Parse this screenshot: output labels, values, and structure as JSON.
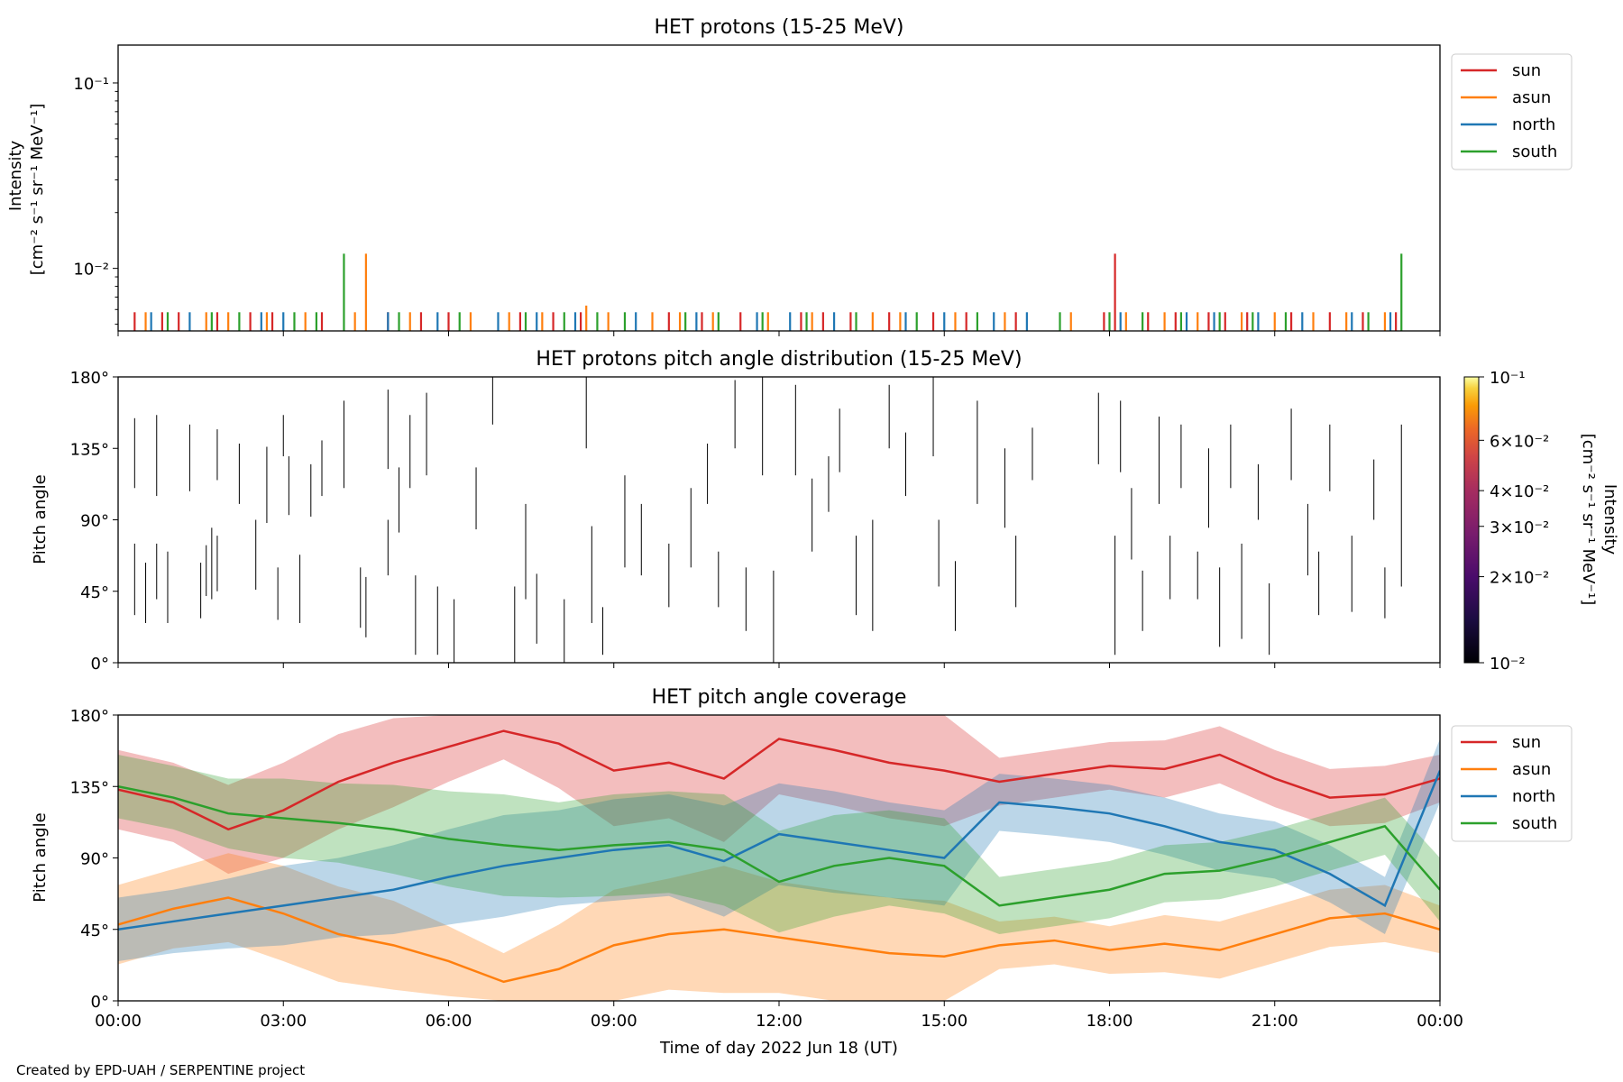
{
  "figure": {
    "credit": "Created by EPD-UAH / SERPENTINE project",
    "xlabel": "Time of day 2022 Jun 18 (UT)",
    "x_ticks": [
      "00:00",
      "03:00",
      "06:00",
      "09:00",
      "12:00",
      "15:00",
      "18:00",
      "21:00",
      "00:00"
    ]
  },
  "colors": {
    "sun": "#d62728",
    "asun": "#ff7f0e",
    "north": "#1f77b4",
    "south": "#2ca02c"
  },
  "chart_data": [
    {
      "type": "bar",
      "title": "HET protons (15-25 MeV)",
      "ylabel_line1": "Intensity",
      "ylabel_line2": "[cm⁻² s⁻¹ sr⁻¹ MeV⁻¹]",
      "yscale": "log",
      "ylim": [
        0.0046,
        0.16
      ],
      "y_ticks": [
        {
          "value": 0.1,
          "label": "10⁻¹"
        },
        {
          "value": 0.01,
          "label": "10⁻²"
        }
      ],
      "xlim_hours": [
        0,
        24
      ],
      "legend": [
        "sun",
        "asun",
        "north",
        "south"
      ],
      "legend_position": "upper right outside",
      "series": [
        {
          "name": "sun",
          "x_hours": [
            0.3,
            0.8,
            1.1,
            1.8,
            2.4,
            2.8,
            3.7,
            4.9,
            5.5,
            6.0,
            7.3,
            7.9,
            8.4,
            10.0,
            10.6,
            11.3,
            12.4,
            12.8,
            13.3,
            14.0,
            14.8,
            15.4,
            16.3,
            17.9,
            18.1,
            18.7,
            19.2,
            19.8,
            20.1,
            20.5,
            21.3,
            22.0,
            22.6,
            23.2
          ],
          "values": [
            0.0058,
            0.0058,
            0.0058,
            0.0058,
            0.0058,
            0.0058,
            0.0058,
            0.0058,
            0.0058,
            0.0058,
            0.0058,
            0.0058,
            0.0058,
            0.0058,
            0.0058,
            0.0058,
            0.0058,
            0.0058,
            0.0058,
            0.0058,
            0.0058,
            0.0058,
            0.0058,
            0.0058,
            0.012,
            0.0058,
            0.0058,
            0.0058,
            0.0058,
            0.0058,
            0.0058,
            0.0058,
            0.0058,
            0.0058
          ]
        },
        {
          "name": "asun",
          "x_hours": [
            0.5,
            1.6,
            2.0,
            2.7,
            3.4,
            4.3,
            4.5,
            5.3,
            6.4,
            7.1,
            7.7,
            8.5,
            8.9,
            9.7,
            10.2,
            10.8,
            11.8,
            12.6,
            13.7,
            14.2,
            15.2,
            16.1,
            17.3,
            18.3,
            19.0,
            19.6,
            20.4,
            21.0,
            21.7,
            22.3,
            23.0
          ],
          "values": [
            0.0058,
            0.0058,
            0.0058,
            0.0058,
            0.0058,
            0.0058,
            0.012,
            0.0058,
            0.0058,
            0.0058,
            0.0058,
            0.0063,
            0.0058,
            0.0058,
            0.0058,
            0.0058,
            0.0058,
            0.0058,
            0.0058,
            0.0058,
            0.0058,
            0.0058,
            0.0058,
            0.0058,
            0.0058,
            0.0058,
            0.0058,
            0.0058,
            0.0058,
            0.0058,
            0.0058
          ]
        },
        {
          "name": "north",
          "x_hours": [
            0.6,
            1.3,
            2.6,
            3.0,
            4.9,
            5.8,
            6.9,
            7.6,
            8.3,
            9.4,
            10.5,
            11.6,
            12.2,
            13.0,
            14.3,
            15.0,
            15.9,
            16.5,
            18.2,
            19.4,
            19.9,
            20.7,
            21.5,
            22.4,
            23.1
          ],
          "values": [
            0.0058,
            0.0058,
            0.0058,
            0.0058,
            0.0058,
            0.0058,
            0.0058,
            0.0058,
            0.0058,
            0.0058,
            0.0058,
            0.0058,
            0.0058,
            0.0058,
            0.0058,
            0.0058,
            0.0058,
            0.0058,
            0.0058,
            0.0058,
            0.0058,
            0.0058,
            0.0058,
            0.0058,
            0.0058
          ]
        },
        {
          "name": "south",
          "x_hours": [
            0.9,
            1.7,
            2.2,
            3.2,
            3.6,
            4.1,
            5.1,
            6.2,
            7.4,
            8.1,
            8.7,
            9.2,
            10.3,
            10.9,
            11.7,
            12.5,
            13.4,
            14.5,
            15.6,
            17.1,
            18.0,
            18.6,
            19.3,
            20.0,
            20.6,
            21.2,
            22.7,
            23.3
          ],
          "values": [
            0.0058,
            0.0058,
            0.0058,
            0.0058,
            0.0058,
            0.012,
            0.0058,
            0.0058,
            0.0058,
            0.0058,
            0.0058,
            0.0058,
            0.0058,
            0.0058,
            0.0058,
            0.0058,
            0.0058,
            0.0058,
            0.0058,
            0.0058,
            0.0058,
            0.0058,
            0.0058,
            0.0058,
            0.0058,
            0.0058,
            0.0058,
            0.012
          ]
        }
      ]
    },
    {
      "type": "heatmap",
      "title": "HET protons pitch angle distribution (15-25 MeV)",
      "ylabel": "Pitch angle",
      "ylim": [
        0,
        180
      ],
      "y_ticks": [
        "0°",
        "45°",
        "90°",
        "135°",
        "180°"
      ],
      "colorbar": {
        "label_line1": "Intensity",
        "label_line2": "[cm⁻² s⁻¹ sr⁻¹ MeV⁻¹]",
        "scale": "log",
        "range": [
          0.01,
          0.1
        ],
        "colormap": "inferno",
        "ticks": [
          {
            "value": 0.1,
            "label": "10⁻¹"
          },
          {
            "value": 0.06,
            "label": "6×10⁻²"
          },
          {
            "value": 0.04,
            "label": "4×10⁻²"
          },
          {
            "value": 0.03,
            "label": "3×10⁻²"
          },
          {
            "value": 0.02,
            "label": "2×10⁻²"
          },
          {
            "value": 0.01,
            "label": "10⁻²"
          }
        ]
      },
      "segments": [
        [
          0.3,
          75,
          30
        ],
        [
          0.3,
          154,
          110
        ],
        [
          0.5,
          63,
          25
        ],
        [
          0.7,
          156,
          105
        ],
        [
          0.7,
          75,
          40
        ],
        [
          0.9,
          70,
          25
        ],
        [
          1.3,
          150,
          108
        ],
        [
          1.5,
          63,
          28
        ],
        [
          1.6,
          74,
          42
        ],
        [
          1.7,
          85,
          40
        ],
        [
          1.8,
          147,
          115
        ],
        [
          1.8,
          80,
          45
        ],
        [
          2.2,
          138,
          100
        ],
        [
          2.5,
          90,
          46
        ],
        [
          2.7,
          136,
          88
        ],
        [
          2.9,
          60,
          27
        ],
        [
          3.0,
          156,
          130
        ],
        [
          3.1,
          130,
          93
        ],
        [
          3.3,
          68,
          25
        ],
        [
          3.5,
          125,
          92
        ],
        [
          3.7,
          140,
          105
        ],
        [
          4.1,
          165,
          110
        ],
        [
          4.4,
          60,
          22
        ],
        [
          4.5,
          54,
          16
        ],
        [
          4.9,
          172,
          122
        ],
        [
          4.9,
          90,
          55
        ],
        [
          5.1,
          123,
          82
        ],
        [
          5.3,
          156,
          110
        ],
        [
          5.4,
          55,
          5
        ],
        [
          5.6,
          170,
          118
        ],
        [
          5.8,
          48,
          5
        ],
        [
          6.1,
          40,
          0
        ],
        [
          6.5,
          123,
          84
        ],
        [
          6.8,
          180,
          150
        ],
        [
          7.2,
          48,
          0
        ],
        [
          7.4,
          100,
          40
        ],
        [
          7.6,
          56,
          12
        ],
        [
          8.1,
          40,
          0
        ],
        [
          8.5,
          180,
          135
        ],
        [
          8.6,
          86,
          25
        ],
        [
          8.8,
          35,
          5
        ],
        [
          9.2,
          118,
          60
        ],
        [
          9.5,
          100,
          55
        ],
        [
          10.0,
          75,
          35
        ],
        [
          10.4,
          110,
          60
        ],
        [
          10.7,
          138,
          100
        ],
        [
          10.9,
          70,
          35
        ],
        [
          11.2,
          178,
          135
        ],
        [
          11.4,
          60,
          20
        ],
        [
          11.7,
          180,
          118
        ],
        [
          11.9,
          58,
          0
        ],
        [
          12.3,
          175,
          118
        ],
        [
          12.6,
          116,
          70
        ],
        [
          12.9,
          130,
          95
        ],
        [
          13.1,
          160,
          120
        ],
        [
          13.4,
          80,
          30
        ],
        [
          13.7,
          90,
          20
        ],
        [
          14.0,
          175,
          135
        ],
        [
          14.3,
          145,
          105
        ],
        [
          14.8,
          180,
          130
        ],
        [
          14.9,
          90,
          48
        ],
        [
          15.2,
          64,
          20
        ],
        [
          15.6,
          165,
          100
        ],
        [
          16.1,
          135,
          85
        ],
        [
          16.3,
          80,
          35
        ],
        [
          16.6,
          148,
          115
        ],
        [
          17.8,
          170,
          125
        ],
        [
          18.1,
          80,
          5
        ],
        [
          18.2,
          165,
          120
        ],
        [
          18.4,
          110,
          65
        ],
        [
          18.6,
          58,
          20
        ],
        [
          18.9,
          155,
          100
        ],
        [
          19.1,
          80,
          40
        ],
        [
          19.3,
          150,
          110
        ],
        [
          19.6,
          70,
          40
        ],
        [
          19.8,
          135,
          85
        ],
        [
          20.0,
          60,
          10
        ],
        [
          20.2,
          150,
          110
        ],
        [
          20.4,
          75,
          15
        ],
        [
          20.7,
          125,
          90
        ],
        [
          20.9,
          50,
          5
        ],
        [
          21.3,
          160,
          115
        ],
        [
          21.6,
          100,
          55
        ],
        [
          21.8,
          70,
          30
        ],
        [
          22.0,
          150,
          108
        ],
        [
          22.4,
          80,
          32
        ],
        [
          22.8,
          128,
          90
        ],
        [
          23.0,
          60,
          28
        ],
        [
          23.3,
          150,
          48
        ]
      ]
    },
    {
      "type": "line",
      "title": "HET pitch angle coverage",
      "ylabel": "Pitch angle",
      "ylim": [
        0,
        180
      ],
      "y_ticks": [
        "0°",
        "45°",
        "90°",
        "135°",
        "180°"
      ],
      "legend": [
        "sun",
        "asun",
        "north",
        "south"
      ],
      "legend_position": "upper right outside",
      "x_hours": [
        0,
        1,
        2,
        3,
        4,
        5,
        6,
        7,
        8,
        9,
        10,
        11,
        12,
        13,
        14,
        15,
        16,
        17,
        18,
        19,
        20,
        21,
        22,
        23,
        24
      ],
      "series": [
        {
          "name": "sun",
          "values": [
            133,
            125,
            108,
            120,
            138,
            150,
            160,
            170,
            162,
            145,
            150,
            140,
            165,
            158,
            150,
            145,
            138,
            143,
            148,
            146,
            155,
            140,
            128,
            130,
            140
          ],
          "band": [
            25,
            25,
            28,
            30,
            30,
            28,
            22,
            18,
            28,
            35,
            35,
            40,
            35,
            35,
            35,
            35,
            15,
            15,
            15,
            18,
            18,
            18,
            18,
            18,
            15
          ]
        },
        {
          "name": "asun",
          "values": [
            48,
            58,
            65,
            55,
            42,
            35,
            25,
            12,
            20,
            35,
            42,
            45,
            40,
            35,
            30,
            28,
            35,
            38,
            32,
            36,
            32,
            42,
            52,
            55,
            45
          ],
          "band": [
            25,
            25,
            28,
            30,
            30,
            28,
            22,
            18,
            28,
            35,
            35,
            40,
            35,
            35,
            35,
            35,
            15,
            15,
            15,
            18,
            18,
            18,
            18,
            18,
            15
          ]
        },
        {
          "name": "north",
          "values": [
            45,
            50,
            55,
            60,
            65,
            70,
            78,
            85,
            90,
            95,
            98,
            88,
            105,
            100,
            95,
            90,
            125,
            122,
            118,
            110,
            100,
            95,
            80,
            60,
            145
          ],
          "band": [
            20,
            20,
            22,
            25,
            25,
            28,
            30,
            32,
            30,
            32,
            32,
            35,
            32,
            32,
            30,
            30,
            18,
            18,
            18,
            18,
            18,
            18,
            18,
            18,
            20
          ]
        },
        {
          "name": "south",
          "values": [
            135,
            128,
            118,
            115,
            112,
            108,
            102,
            98,
            95,
            98,
            100,
            95,
            75,
            85,
            90,
            85,
            60,
            65,
            70,
            80,
            82,
            90,
            100,
            110,
            70
          ],
          "band": [
            20,
            20,
            22,
            25,
            25,
            28,
            30,
            32,
            30,
            32,
            32,
            35,
            32,
            32,
            30,
            30,
            18,
            18,
            18,
            18,
            18,
            18,
            18,
            18,
            20
          ]
        }
      ]
    }
  ]
}
